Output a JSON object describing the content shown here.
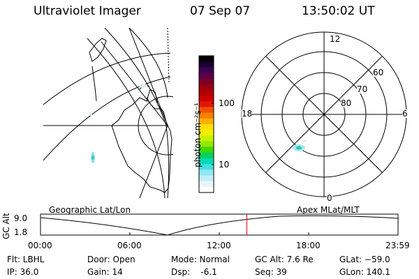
{
  "header": {
    "instrument": "Ultraviolet Imager",
    "date": "07 Sep 07",
    "time": "13:50:02 UT"
  },
  "colorbar": {
    "unit_label": "photon cm⁻²s⁻¹",
    "ticks": [
      "100",
      "10"
    ],
    "colors": [
      "#000000",
      "#1a0030",
      "#3c0050",
      "#5a0048",
      "#7a0028",
      "#9a0010",
      "#b40000",
      "#cc0000",
      "#e01800",
      "#f05000",
      "#f88000",
      "#ffb000",
      "#ffe000",
      "#f0f000",
      "#c8f000",
      "#90e800",
      "#40d800",
      "#00d060",
      "#00d8b8",
      "#40e0e0",
      "#90e8f0",
      "#c0eef8",
      "#e8f6fb",
      "#ffffff"
    ]
  },
  "polar_plot": {
    "mlt_labels": {
      "top": "12",
      "left": "18",
      "right": "6",
      "bottom": "0"
    },
    "lat_labels": [
      "60",
      "70",
      "80"
    ]
  },
  "timeline": {
    "y_axis_label": "GC Alt",
    "y_ticks": [
      "9.0",
      "1.8"
    ],
    "left_title": "Geographic Lat/Lon",
    "right_title": "Apex MLat/MLT",
    "x_ticks": [
      "00:00",
      "06:00",
      "12:00",
      "18:00",
      "23:59"
    ],
    "current_time_fraction": 0.577,
    "cursor_color": "#e00000"
  },
  "status": {
    "filter": "Flt: LBHL",
    "ip": "IP: 36.0",
    "door": "Door: Open",
    "gain": "Gain: 14",
    "mode": "Mode: Normal",
    "dsp": "Dsp:    -6.1",
    "gc_alt": "GC Alt: 7.6 Re",
    "seq": "Seq: 39",
    "glat": "GLat: −59.0",
    "glon": "GLon: 140.1"
  }
}
